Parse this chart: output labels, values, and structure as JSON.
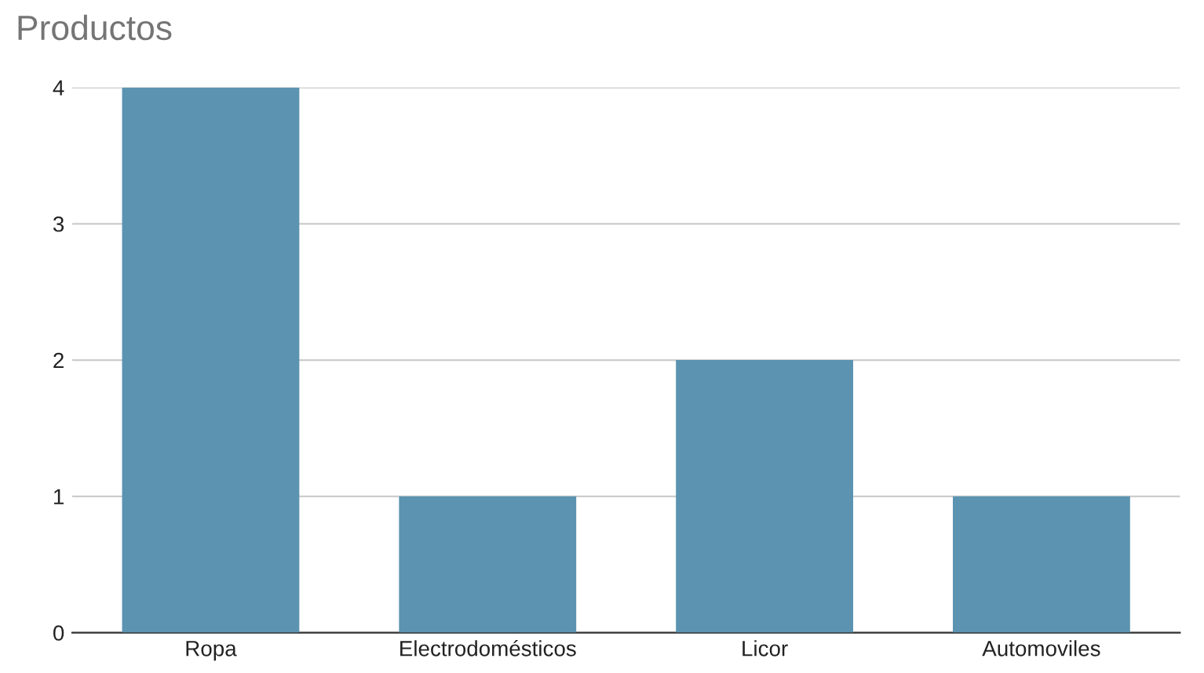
{
  "chart_data": {
    "type": "bar",
    "title": "Productos",
    "categories": [
      "Ropa",
      "Electrodomésticos",
      "Licor",
      "Automoviles"
    ],
    "values": [
      4,
      1,
      2,
      1
    ],
    "color": "#5b93b0",
    "ylim": [
      0,
      4
    ],
    "yticks": [
      0,
      1,
      2,
      3,
      4
    ],
    "grid": "y"
  }
}
